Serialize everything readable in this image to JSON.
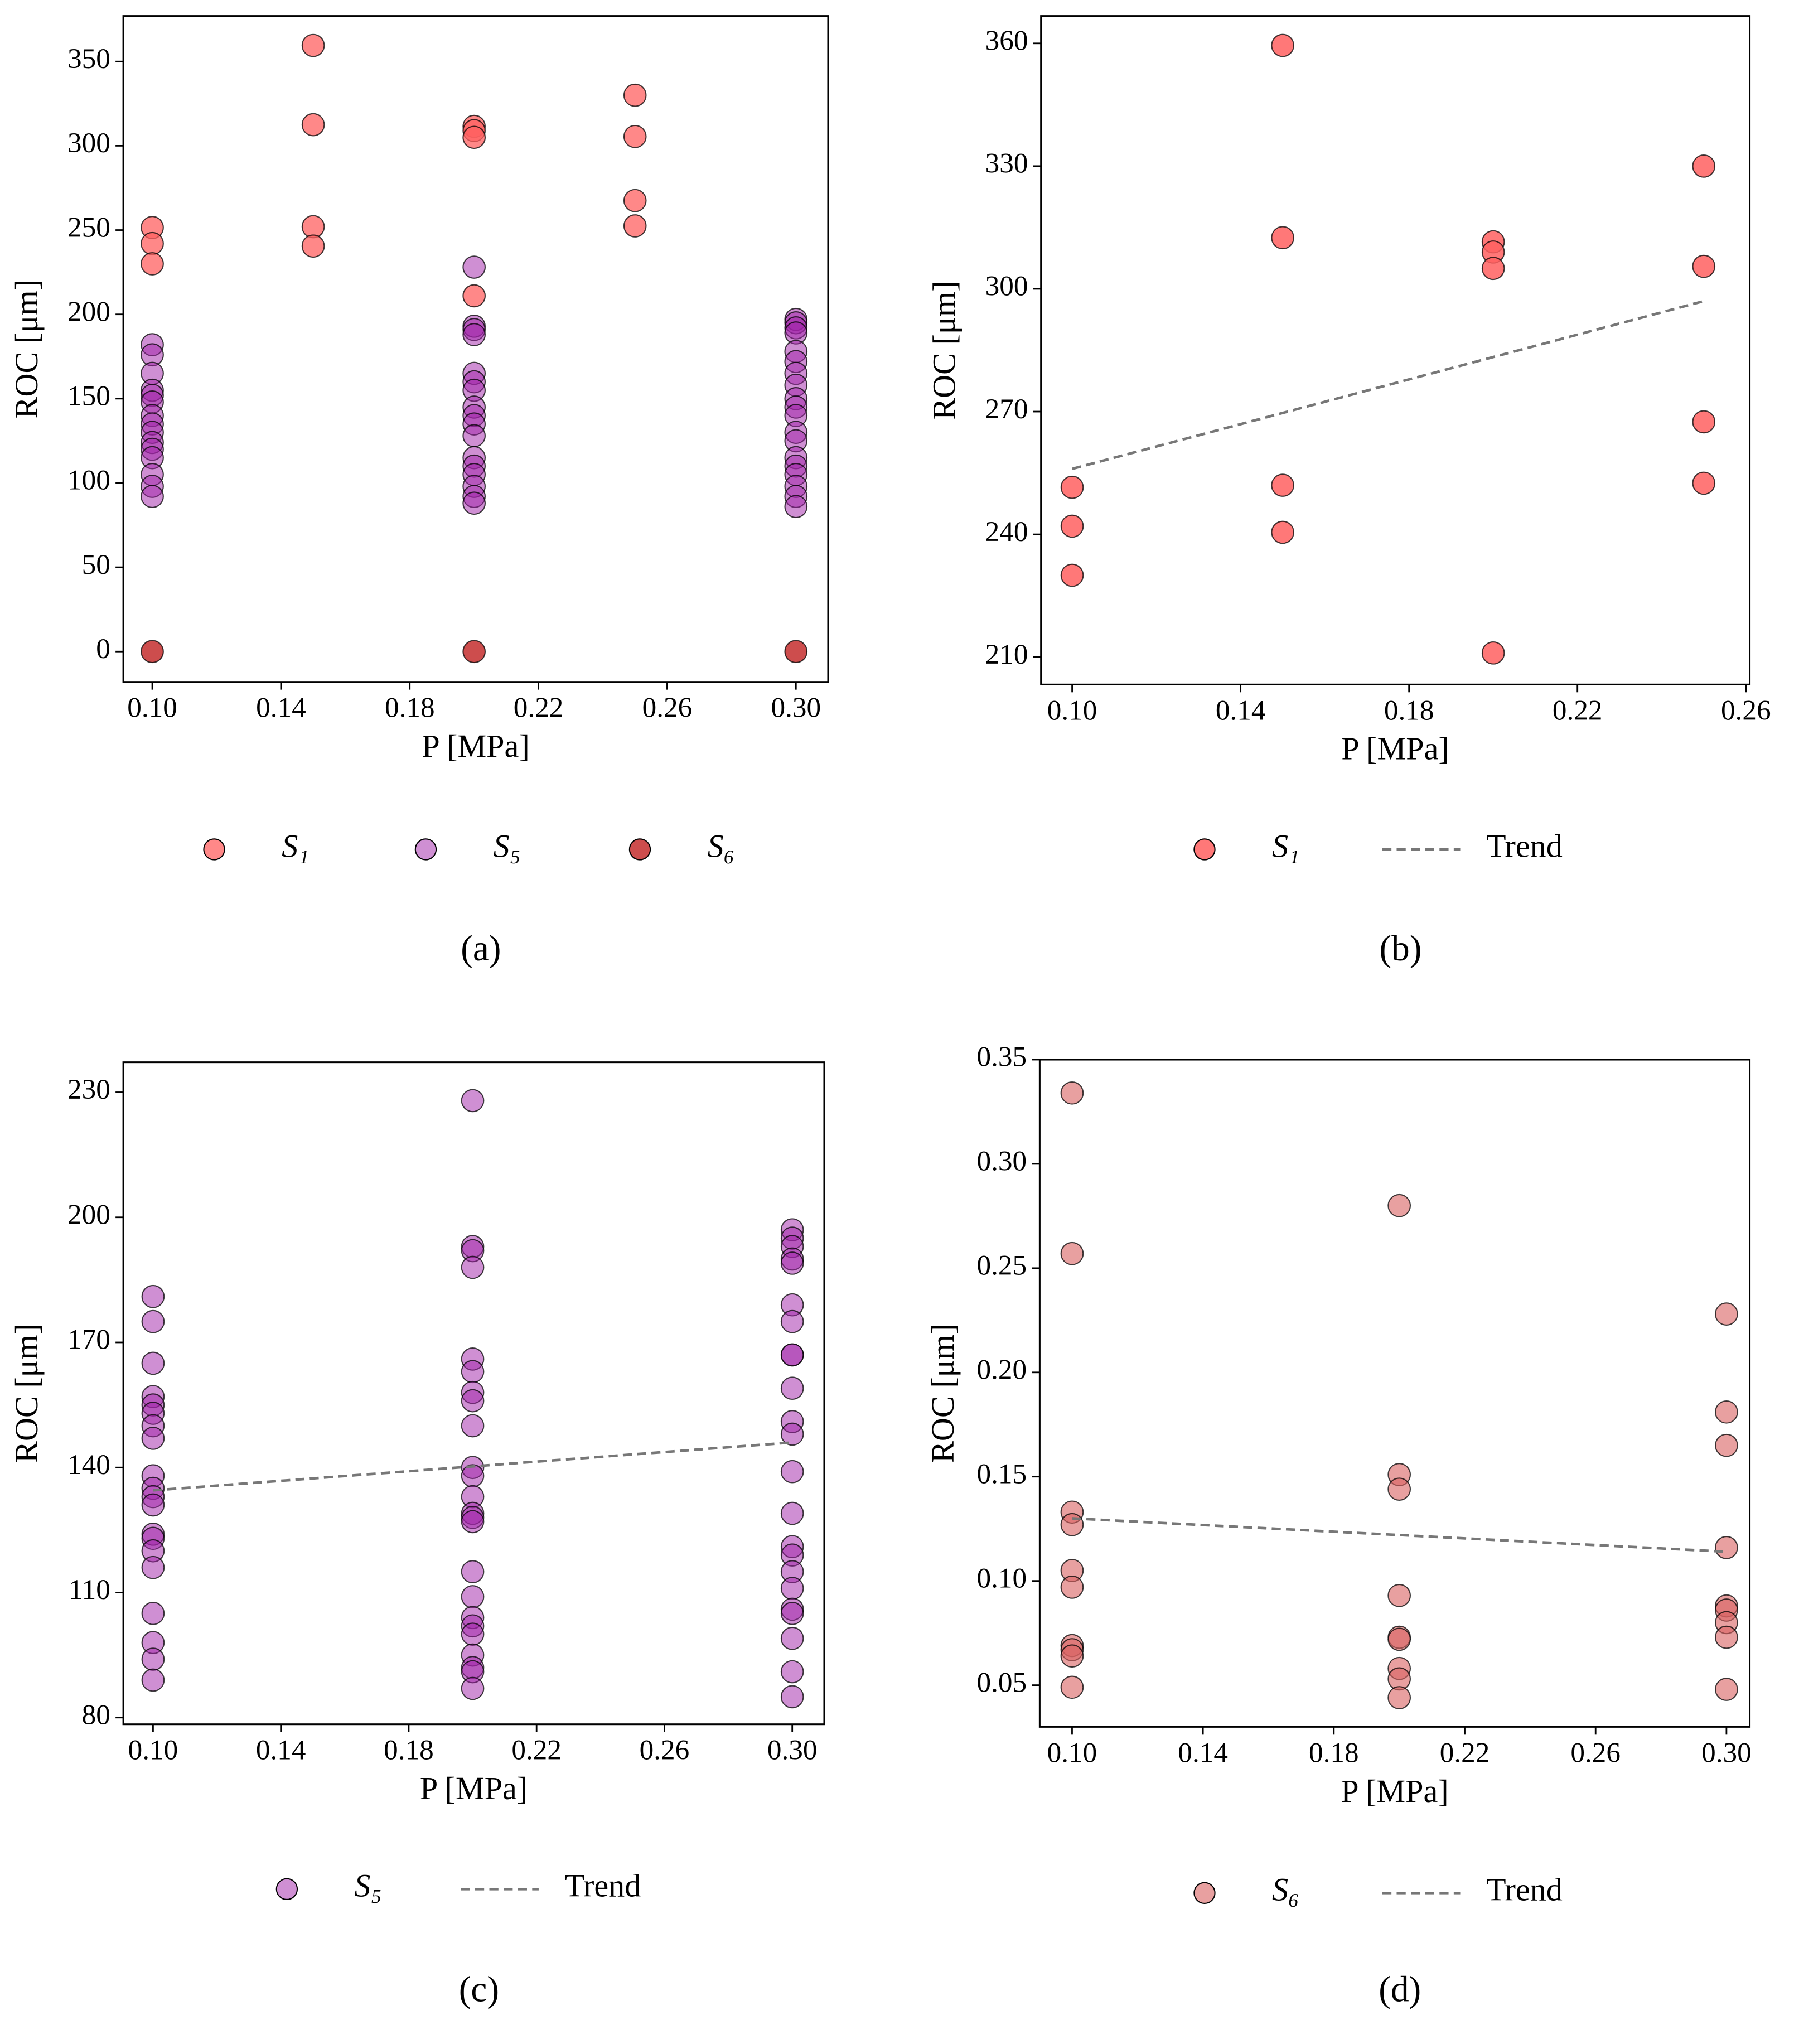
{
  "chart_data": [
    {
      "type": "scatter",
      "caption": "(a)",
      "xlabel": "P [MPa]",
      "ylabel": "ROC [μm]",
      "xlim": [
        0.091,
        0.31
      ],
      "ylim": [
        -18,
        377
      ],
      "xticks": [
        {
          "value": 0.1,
          "label": "0.10"
        },
        0.14,
        0.18,
        0.22,
        0.26,
        {
          "value": 0.3,
          "label": "0.30"
        }
      ],
      "yticks": [
        0,
        50,
        100,
        150,
        200,
        250,
        300,
        350
      ],
      "series": [
        {
          "name": "S₁",
          "color": "#ff6060",
          "alpha": 0.75,
          "x": [
            0.1,
            0.1,
            0.1,
            0.15,
            0.15,
            0.15,
            0.15,
            0.2,
            0.2,
            0.2,
            0.2,
            0.25,
            0.25,
            0.25,
            0.25
          ],
          "values": [
            251.5,
            242,
            230,
            359.5,
            312.5,
            252,
            240.5,
            311.5,
            309,
            305,
            211,
            330,
            305.5,
            267.5,
            252.5
          ]
        },
        {
          "name": "S₅",
          "color": "#a020a8",
          "alpha": 0.5,
          "x": [
            0.1,
            0.1,
            0.1,
            0.1,
            0.1,
            0.1,
            0.1,
            0.1,
            0.1,
            0.1,
            0.1,
            0.1,
            0.1,
            0.1,
            0.1,
            0.2,
            0.2,
            0.2,
            0.2,
            0.2,
            0.2,
            0.2,
            0.2,
            0.2,
            0.2,
            0.2,
            0.2,
            0.2,
            0.2,
            0.2,
            0.2,
            0.2,
            0.3,
            0.3,
            0.3,
            0.3,
            0.3,
            0.3,
            0.3,
            0.3,
            0.3,
            0.3,
            0.3,
            0.3,
            0.3,
            0.3,
            0.3,
            0.3,
            0.3,
            0.3,
            0.3
          ],
          "values": [
            182,
            176,
            165,
            155,
            152,
            148,
            140,
            135,
            130,
            124,
            120,
            115,
            105,
            98,
            92,
            228,
            193,
            191,
            188,
            165,
            160,
            155,
            145,
            140,
            135,
            128,
            115,
            110,
            105,
            98,
            92,
            88,
            197,
            195,
            192,
            189,
            178,
            172,
            165,
            158,
            150,
            145,
            140,
            130,
            125,
            115,
            110,
            105,
            98,
            92,
            86
          ]
        },
        {
          "name": "S₆",
          "color": "#c02020",
          "alpha": 0.8,
          "x": [
            0.1,
            0.2,
            0.3
          ],
          "values": [
            0,
            0,
            0
          ]
        }
      ]
    },
    {
      "type": "scatter",
      "caption": "(b)",
      "xlabel": "P [MPa]",
      "ylabel": "ROC [μm]",
      "xlim": [
        0.0926,
        0.2609
      ],
      "ylim": [
        203.3,
        366.7
      ],
      "xticks": [
        {
          "value": 0.1,
          "label": "0.10"
        },
        0.14,
        0.18,
        0.22,
        0.26
      ],
      "yticks": [
        210,
        240,
        270,
        300,
        330,
        360
      ],
      "series": [
        {
          "name": "S₁",
          "color": "#ff6060",
          "alpha": 0.85,
          "x": [
            0.1,
            0.1,
            0.1,
            0.15,
            0.15,
            0.15,
            0.15,
            0.2,
            0.2,
            0.2,
            0.2,
            0.25,
            0.25,
            0.25,
            0.25
          ],
          "values": [
            251.5,
            242,
            230,
            359.5,
            312.5,
            252,
            240.5,
            311.5,
            309,
            305,
            211,
            330,
            305.5,
            267.5,
            252.5
          ]
        },
        {
          "name": "Trend",
          "style": "dashed",
          "color": "#777777",
          "x": [
            0.1,
            0.25
          ],
          "values": [
            256,
            297
          ]
        }
      ]
    },
    {
      "type": "scatter",
      "caption": "(c)",
      "xlabel": "P [MPa]",
      "ylabel": "ROC [μm]",
      "xlim": [
        0.0907,
        0.31
      ],
      "ylim": [
        78.4,
        237.2
      ],
      "xticks": [
        {
          "value": 0.1,
          "label": "0.10"
        },
        0.14,
        0.18,
        0.22,
        0.26,
        {
          "value": 0.3,
          "label": "0.30"
        }
      ],
      "yticks": [
        80,
        110,
        140,
        170,
        200,
        230
      ],
      "series": [
        {
          "name": "S₅",
          "color": "#a020a8",
          "alpha": 0.5,
          "x": [
            0.1,
            0.1,
            0.1,
            0.1,
            0.1,
            0.1,
            0.1,
            0.1,
            0.1,
            0.1,
            0.1,
            0.1,
            0.1,
            0.1,
            0.1,
            0.1,
            0.1,
            0.1,
            0.1,
            0.1,
            0.2,
            0.2,
            0.2,
            0.2,
            0.2,
            0.2,
            0.2,
            0.2,
            0.2,
            0.2,
            0.2,
            0.2,
            0.2,
            0.2,
            0.2,
            0.2,
            0.2,
            0.2,
            0.2,
            0.2,
            0.2,
            0.2,
            0.2,
            0.2,
            0.3,
            0.3,
            0.3,
            0.3,
            0.3,
            0.3,
            0.3,
            0.3,
            0.3,
            0.3,
            0.3,
            0.3,
            0.3,
            0.3,
            0.3,
            0.3,
            0.3,
            0.3,
            0.3,
            0.3,
            0.3,
            0.3,
            0.3
          ],
          "values": [
            181,
            175,
            165,
            157,
            155,
            153,
            150,
            147,
            138,
            135,
            133,
            131,
            124,
            123,
            120,
            116,
            105,
            98,
            94,
            89,
            228,
            193,
            192,
            188,
            166,
            163,
            158,
            156,
            150,
            140,
            138,
            133,
            129,
            128,
            127,
            115,
            109,
            104,
            102,
            100,
            95,
            92,
            91,
            87,
            197,
            195,
            193,
            190,
            189,
            179,
            175,
            167,
            167,
            159,
            151,
            148,
            139,
            129,
            121,
            119,
            115,
            111,
            106,
            105,
            99,
            91,
            85
          ]
        },
        {
          "name": "Trend",
          "style": "dashed",
          "color": "#777777",
          "x": [
            0.1,
            0.3
          ],
          "values": [
            134.5,
            146
          ]
        }
      ]
    },
    {
      "type": "scatter",
      "caption": "(d)",
      "xlabel": "P [MPa]",
      "ylabel": "ROC [μm]",
      "xlim": [
        0.0901,
        0.3071
      ],
      "ylim": [
        0.03,
        0.35
      ],
      "xticks": [
        {
          "value": 0.1,
          "label": "0.10"
        },
        0.14,
        0.18,
        0.22,
        0.26,
        {
          "value": 0.3,
          "label": "0.30"
        }
      ],
      "yticks": [
        {
          "value": 0.05,
          "label": "0.05"
        },
        {
          "value": 0.1,
          "label": "0.10"
        },
        0.15,
        {
          "value": 0.2,
          "label": "0.20"
        },
        0.25,
        {
          "value": 0.3,
          "label": "0.30"
        },
        0.35
      ],
      "series": [
        {
          "name": "S₆",
          "color": "#d86060",
          "alpha": 0.6,
          "x": [
            0.1,
            0.1,
            0.1,
            0.1,
            0.1,
            0.1,
            0.1,
            0.1,
            0.1,
            0.1,
            0.2,
            0.2,
            0.2,
            0.2,
            0.2,
            0.2,
            0.2,
            0.2,
            0.2,
            0.3,
            0.3,
            0.3,
            0.3,
            0.3,
            0.3,
            0.3,
            0.3,
            0.3
          ],
          "values": [
            0.334,
            0.257,
            0.133,
            0.127,
            0.105,
            0.097,
            0.069,
            0.067,
            0.064,
            0.049,
            0.28,
            0.151,
            0.144,
            0.093,
            0.073,
            0.072,
            0.058,
            0.053,
            0.044,
            0.228,
            0.181,
            0.165,
            0.116,
            0.088,
            0.086,
            0.08,
            0.073,
            0.048
          ]
        },
        {
          "name": "Trend",
          "style": "dashed",
          "color": "#777777",
          "x": [
            0.1,
            0.3
          ],
          "values": [
            0.13,
            0.114
          ]
        }
      ]
    }
  ]
}
